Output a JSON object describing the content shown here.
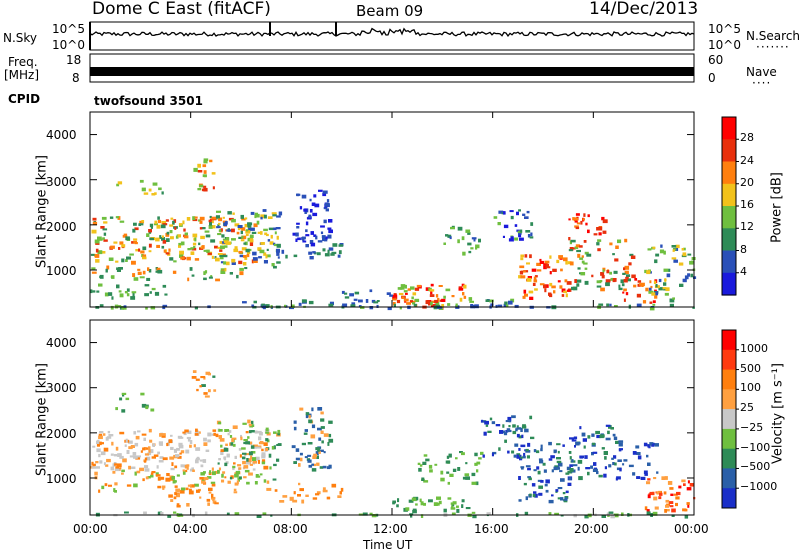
{
  "header": {
    "station": "Dome C East (fitACF)",
    "beam": "Beam 09",
    "date": "14/Dec/2013"
  },
  "params": {
    "nsky_label": "N.Sky",
    "nsky_ticks": [
      "10^5",
      "10^0"
    ],
    "nsearch_label": "N.Search",
    "nsearch_ticks": [
      "10^5",
      "10^0"
    ],
    "freq_label_1": "Freq.",
    "freq_label_2": "[MHz]",
    "freq_ticks": [
      "18",
      "8"
    ],
    "nave_label": "Nave",
    "nave_ticks": [
      "60",
      "0"
    ],
    "cpid_label": "CPID",
    "cpid_value": "twofsound 3501"
  },
  "chart_data": [
    {
      "type": "heatmap",
      "panel": "power",
      "ylabel": "Slant Range [km]",
      "yticks": [
        "4000",
        "3000",
        "2000",
        "1000"
      ],
      "ylim": [
        180,
        4500
      ],
      "colorbar_label": "Power [dB]",
      "colorbar_ticks": [
        "28",
        "24",
        "20",
        "16",
        "12",
        "8",
        "4"
      ],
      "colors": [
        "#1a1adc",
        "#2a50b8",
        "#2e8b57",
        "#6fbf3f",
        "#f2c21b",
        "#ff7f0e",
        "#e8300c",
        "#ff0000"
      ]
    },
    {
      "type": "heatmap",
      "panel": "velocity",
      "ylabel": "Slant Range [km]",
      "yticks": [
        "4000",
        "3000",
        "2000",
        "1000"
      ],
      "ylim": [
        180,
        4500
      ],
      "xlabel": "Time UT",
      "xticks": [
        "00:00",
        "04:00",
        "08:00",
        "12:00",
        "16:00",
        "20:00",
        "00:00"
      ],
      "colorbar_label": "Velocity [m s⁻¹]",
      "colorbar_ticks": [
        "1000",
        "500",
        "100",
        "25",
        "−25",
        "−100",
        "−500",
        "−1000"
      ],
      "colors": [
        "#1a2fc8",
        "#2a5fa8",
        "#2e8b57",
        "#6fbf3f",
        "#c8c8c8",
        "#ffa040",
        "#ff7f0e",
        "#ff3a10",
        "#ff0000"
      ]
    }
  ]
}
